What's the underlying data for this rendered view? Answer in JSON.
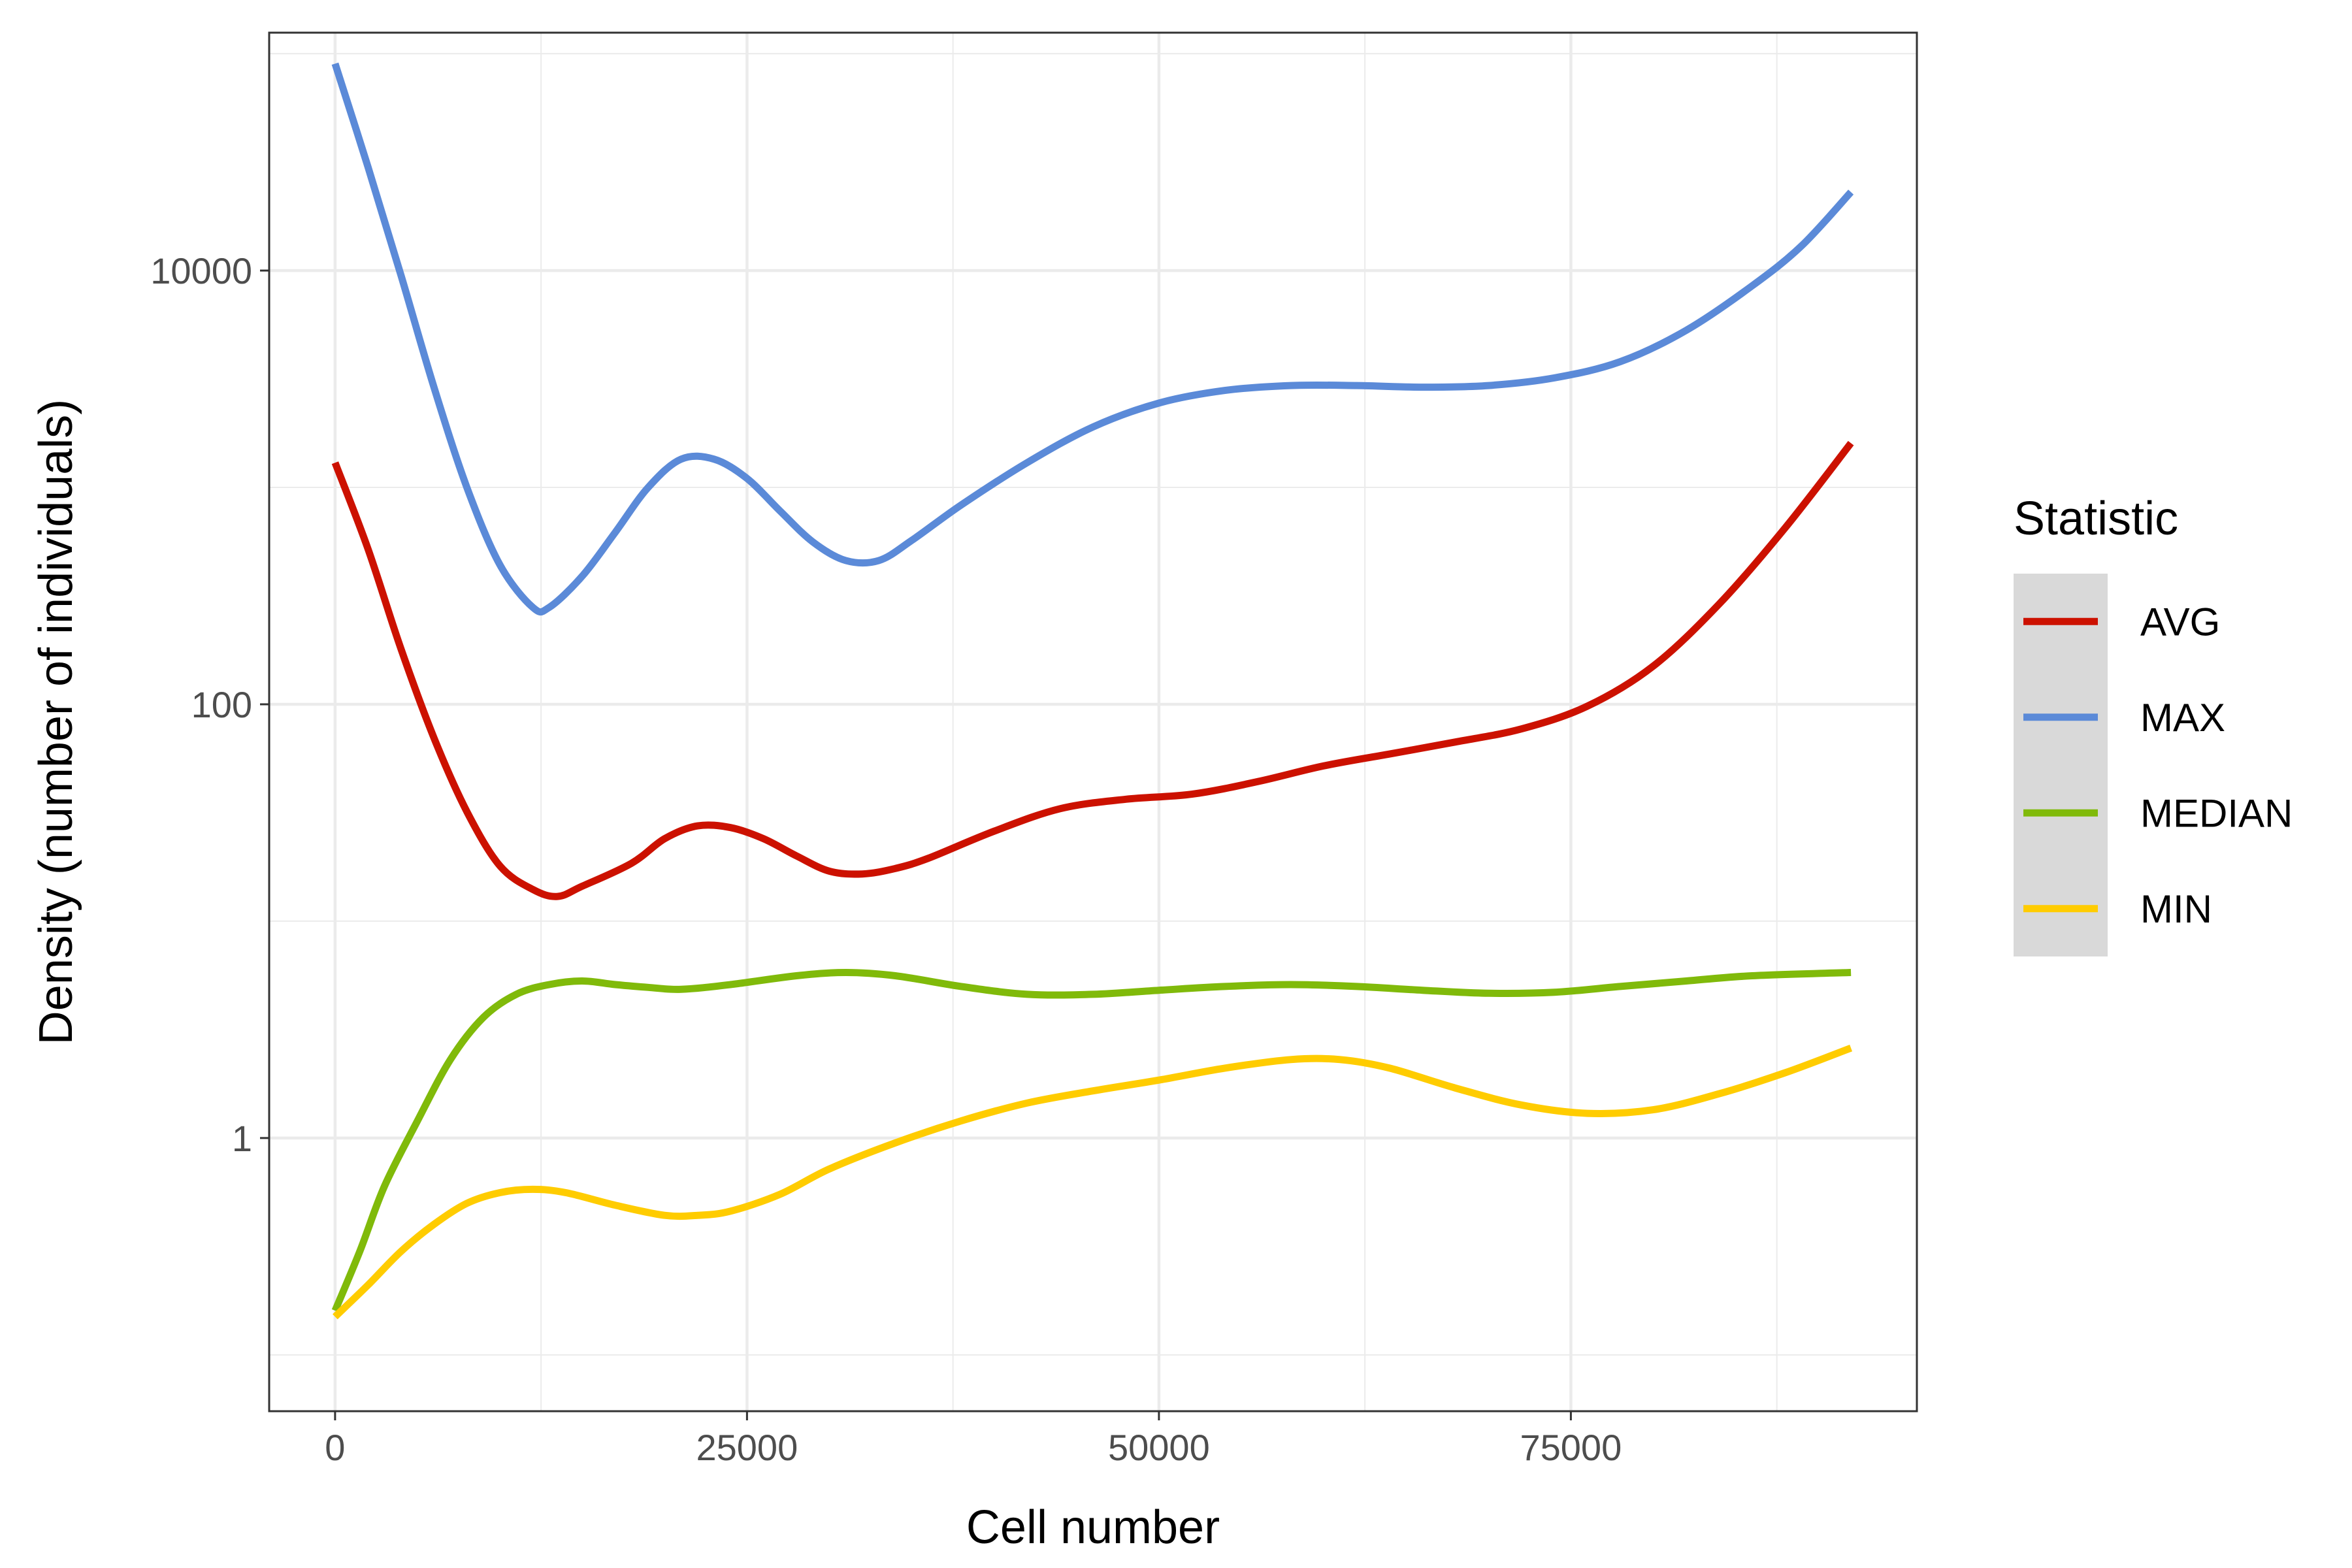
{
  "chart_data": {
    "type": "line",
    "title": "",
    "xlabel": "Cell number",
    "ylabel": "Density (number of individuals)",
    "x_scale": "linear",
    "y_scale": "log10",
    "xlim": [
      -4000,
      96000
    ],
    "ylim": [
      0.055,
      125000
    ],
    "x_ticks": [
      0,
      25000,
      50000,
      75000
    ],
    "x_tick_labels": [
      "0",
      "25000",
      "50000",
      "75000"
    ],
    "y_ticks": [
      1,
      100,
      10000
    ],
    "y_tick_labels": [
      "1",
      "100",
      "10000"
    ],
    "grid": true,
    "legend": {
      "title": "Statistic",
      "position": "right"
    },
    "series": [
      {
        "name": "AVG",
        "color": "#CC1100",
        "points": [
          [
            0,
            1300
          ],
          [
            2000,
            520
          ],
          [
            4000,
            180
          ],
          [
            6000,
            70
          ],
          [
            8000,
            32
          ],
          [
            10000,
            18
          ],
          [
            12000,
            14
          ],
          [
            13500,
            13
          ],
          [
            15000,
            14.5
          ],
          [
            18000,
            18.5
          ],
          [
            20000,
            24
          ],
          [
            22000,
            27.5
          ],
          [
            24000,
            27
          ],
          [
            26000,
            24
          ],
          [
            28000,
            20
          ],
          [
            30000,
            17
          ],
          [
            32000,
            16.5
          ],
          [
            34000,
            17.5
          ],
          [
            36000,
            19.5
          ],
          [
            40000,
            26
          ],
          [
            44000,
            33
          ],
          [
            48000,
            36.5
          ],
          [
            52000,
            38.5
          ],
          [
            56000,
            44
          ],
          [
            60000,
            52
          ],
          [
            64000,
            59
          ],
          [
            68000,
            67
          ],
          [
            72000,
            77
          ],
          [
            76000,
            98
          ],
          [
            80000,
            150
          ],
          [
            84000,
            290
          ],
          [
            88000,
            650
          ],
          [
            92000,
            1600
          ]
        ]
      },
      {
        "name": "MAX",
        "color": "#5B8AD8",
        "points": [
          [
            0,
            90000
          ],
          [
            2000,
            30000
          ],
          [
            4000,
            9500
          ],
          [
            6000,
            2900
          ],
          [
            8000,
            1000
          ],
          [
            10000,
            440
          ],
          [
            12000,
            280
          ],
          [
            13000,
            280
          ],
          [
            15000,
            390
          ],
          [
            17000,
            620
          ],
          [
            19000,
            1000
          ],
          [
            21000,
            1350
          ],
          [
            23000,
            1350
          ],
          [
            25000,
            1100
          ],
          [
            27000,
            780
          ],
          [
            29000,
            560
          ],
          [
            31000,
            460
          ],
          [
            33000,
            460
          ],
          [
            35000,
            570
          ],
          [
            38000,
            830
          ],
          [
            42000,
            1300
          ],
          [
            46000,
            1900
          ],
          [
            50000,
            2450
          ],
          [
            54000,
            2800
          ],
          [
            58000,
            2950
          ],
          [
            62000,
            2950
          ],
          [
            66000,
            2900
          ],
          [
            70000,
            2950
          ],
          [
            74000,
            3200
          ],
          [
            78000,
            3800
          ],
          [
            82000,
            5300
          ],
          [
            86000,
            8500
          ],
          [
            89000,
            13000
          ],
          [
            92000,
            23000
          ]
        ]
      },
      {
        "name": "MEDIAN",
        "color": "#80BA0A",
        "points": [
          [
            0,
            0.16
          ],
          [
            1500,
            0.3
          ],
          [
            3000,
            0.6
          ],
          [
            5000,
            1.2
          ],
          [
            7000,
            2.3
          ],
          [
            9000,
            3.6
          ],
          [
            11000,
            4.6
          ],
          [
            13000,
            5.1
          ],
          [
            15000,
            5.3
          ],
          [
            17000,
            5.1
          ],
          [
            19000,
            4.95
          ],
          [
            21000,
            4.85
          ],
          [
            24000,
            5.1
          ],
          [
            28000,
            5.6
          ],
          [
            31000,
            5.8
          ],
          [
            34000,
            5.6
          ],
          [
            38000,
            5.0
          ],
          [
            42000,
            4.6
          ],
          [
            46000,
            4.6
          ],
          [
            50000,
            4.8
          ],
          [
            54000,
            5.0
          ],
          [
            58000,
            5.1
          ],
          [
            62000,
            5.0
          ],
          [
            66000,
            4.8
          ],
          [
            70000,
            4.65
          ],
          [
            74000,
            4.7
          ],
          [
            78000,
            5.0
          ],
          [
            82000,
            5.3
          ],
          [
            86000,
            5.6
          ],
          [
            92000,
            5.8
          ]
        ]
      },
      {
        "name": "MIN",
        "color": "#FFCC00",
        "points": [
          [
            0,
            0.15
          ],
          [
            2000,
            0.21
          ],
          [
            4000,
            0.3
          ],
          [
            6000,
            0.4
          ],
          [
            8000,
            0.5
          ],
          [
            10000,
            0.56
          ],
          [
            12000,
            0.58
          ],
          [
            14000,
            0.56
          ],
          [
            17000,
            0.49
          ],
          [
            20000,
            0.44
          ],
          [
            22000,
            0.44
          ],
          [
            24000,
            0.46
          ],
          [
            27000,
            0.55
          ],
          [
            30000,
            0.72
          ],
          [
            34000,
            0.95
          ],
          [
            38000,
            1.2
          ],
          [
            42000,
            1.45
          ],
          [
            46000,
            1.65
          ],
          [
            50000,
            1.85
          ],
          [
            54000,
            2.1
          ],
          [
            58000,
            2.3
          ],
          [
            61000,
            2.3
          ],
          [
            64000,
            2.1
          ],
          [
            68000,
            1.7
          ],
          [
            72000,
            1.42
          ],
          [
            76000,
            1.3
          ],
          [
            80000,
            1.35
          ],
          [
            84000,
            1.6
          ],
          [
            88000,
            2.0
          ],
          [
            92000,
            2.6
          ]
        ]
      }
    ]
  }
}
